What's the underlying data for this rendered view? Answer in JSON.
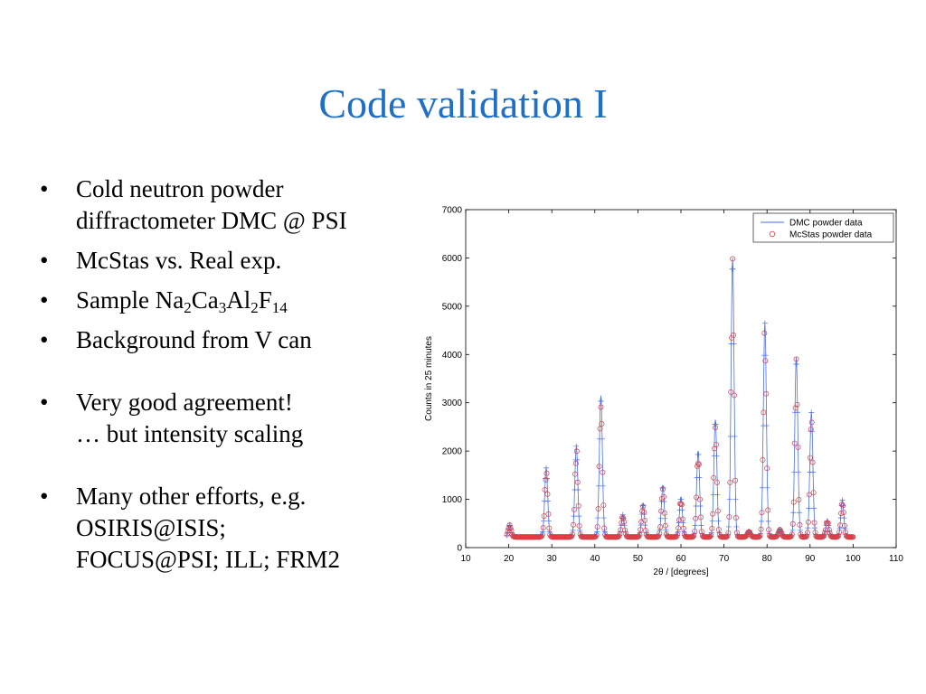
{
  "slide": {
    "title": "Code validation I",
    "bullets": {
      "b1_line1": "Cold neutron powder",
      "b1_line2": "diffractometer DMC @ PSI",
      "b2": "McStas vs. Real exp.",
      "b3_prefix": "Sample Na",
      "b3_s1": "2",
      "b3_t1": "Ca",
      "b3_s2": "3",
      "b3_t2": "Al",
      "b3_s3": "2",
      "b3_t3": "F",
      "b3_s4": "14",
      "b4": "Background from V can",
      "b5_line1": "Very good agreement!",
      "b5_line2": "… but intensity scaling",
      "b6_line1": "Many other efforts, e.g.",
      "b6_line2": "OSIRIS@ISIS;",
      "b6_line3": "FOCUS@PSI; ILL; FRM2",
      "bullet_symbol": "•"
    }
  },
  "chart_data": {
    "type": "line",
    "xlabel": "2θ / [degrees]",
    "ylabel": "Counts in 25 minutes",
    "xlim": [
      10,
      110
    ],
    "ylim": [
      0,
      7000
    ],
    "xticks": [
      10,
      20,
      30,
      40,
      50,
      60,
      70,
      80,
      90,
      100,
      110
    ],
    "yticks": [
      0,
      1000,
      2000,
      3000,
      4000,
      5000,
      6000,
      7000
    ],
    "legend_position": "top-right",
    "grid": false,
    "series": [
      {
        "name": "DMC powder data",
        "color": "#4a6fe8",
        "style": "line-with-plus-markers"
      },
      {
        "name": "McStas powder data",
        "color": "#e23b3b",
        "style": "circle-markers"
      }
    ],
    "baseline": 220,
    "x_range_data": [
      19.5,
      100
    ],
    "peaks": [
      {
        "x": 20.2,
        "height": 470
      },
      {
        "x": 28.7,
        "height": 1650
      },
      {
        "x": 35.7,
        "height": 2100
      },
      {
        "x": 41.4,
        "height": 3150
      },
      {
        "x": 46.5,
        "height": 680
      },
      {
        "x": 51.2,
        "height": 900
      },
      {
        "x": 55.8,
        "height": 1280
      },
      {
        "x": 60.0,
        "height": 1030
      },
      {
        "x": 64.0,
        "height": 2000
      },
      {
        "x": 68.0,
        "height": 2650
      },
      {
        "x": 72.0,
        "height": 6000
      },
      {
        "x": 75.8,
        "height": 340
      },
      {
        "x": 79.5,
        "height": 4650
      },
      {
        "x": 83.0,
        "height": 380
      },
      {
        "x": 86.8,
        "height": 3950
      },
      {
        "x": 90.3,
        "height": 2800
      },
      {
        "x": 94.0,
        "height": 560
      },
      {
        "x": 97.5,
        "height": 980
      }
    ]
  }
}
